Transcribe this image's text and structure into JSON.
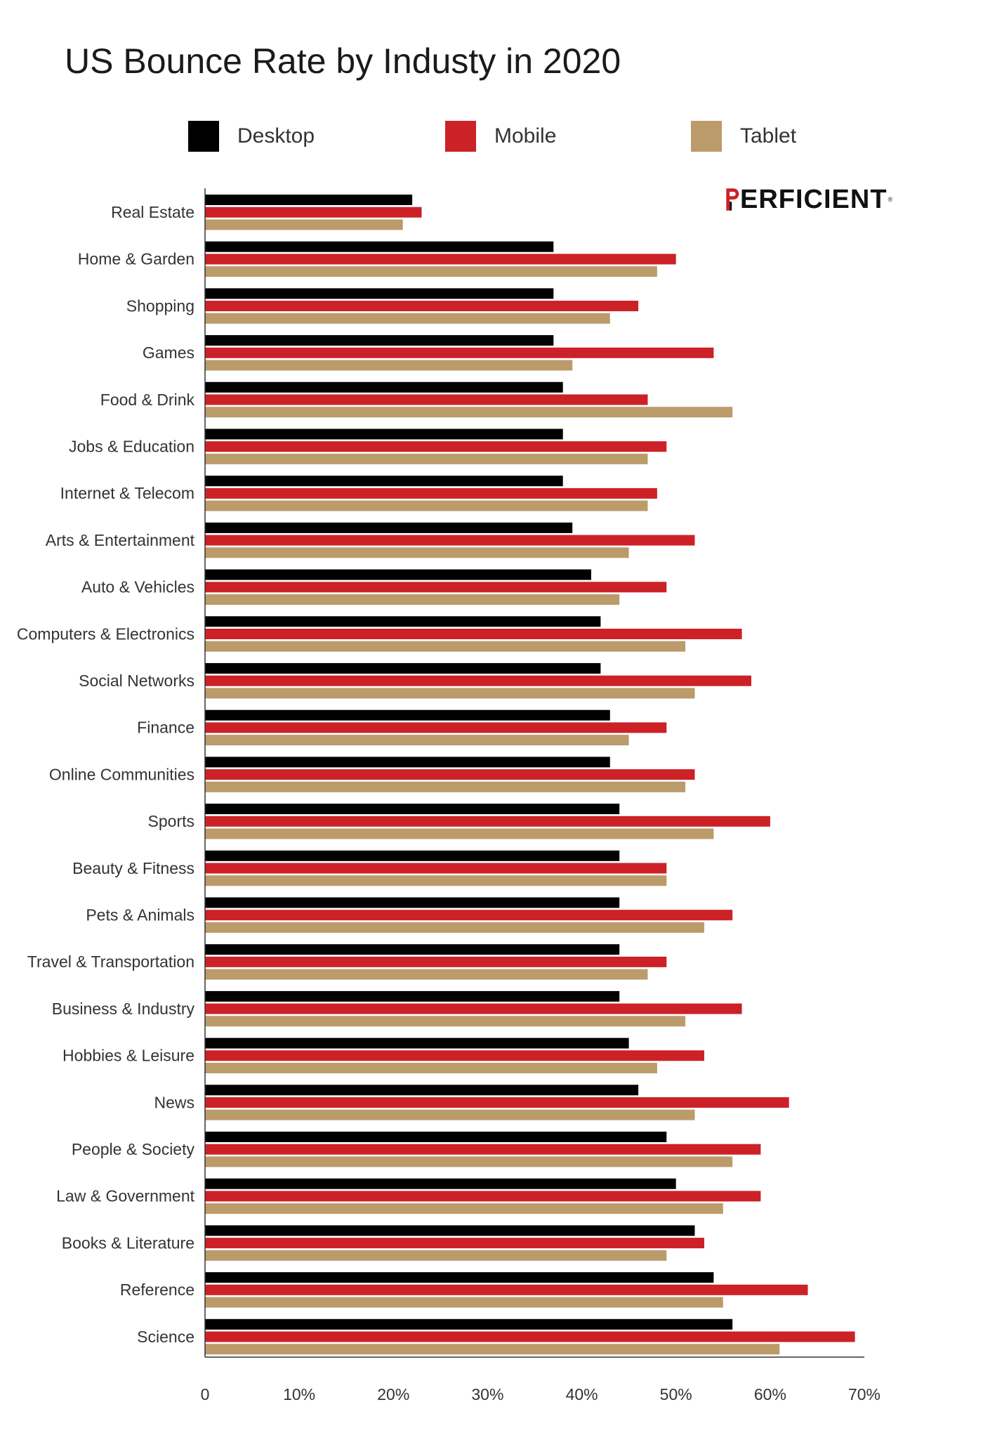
{
  "chart_data": {
    "type": "bar",
    "orientation": "horizontal",
    "title": "US Bounce Rate by Industy in 2020",
    "xlabel": "",
    "ylabel": "",
    "xlim": [
      0,
      70
    ],
    "ticks": [
      0,
      10,
      20,
      30,
      40,
      50,
      60,
      70
    ],
    "tick_labels": [
      "0",
      "10%",
      "20%",
      "30%",
      "40%",
      "50%",
      "60%",
      "70%"
    ],
    "grid": false,
    "legend_position": "top",
    "categories": [
      "Real Estate",
      "Home & Garden",
      "Shopping",
      "Games",
      "Food & Drink",
      "Jobs & Education",
      "Internet & Telecom",
      "Arts & Entertainment",
      "Auto & Vehicles",
      "Computers & Electronics",
      "Social Networks",
      "Finance",
      "Online Communities",
      "Sports",
      "Beauty & Fitness",
      "Pets & Animals",
      "Travel & Transportation",
      "Business & Industry",
      "Hobbies & Leisure",
      "News",
      "People & Society",
      "Law & Government",
      "Books & Literature",
      "Reference",
      "Science"
    ],
    "series": [
      {
        "name": "Desktop",
        "color": "#000000",
        "values": [
          22,
          37,
          37,
          37,
          38,
          38,
          38,
          39,
          41,
          42,
          42,
          43,
          43,
          44,
          44,
          44,
          44,
          44,
          45,
          46,
          49,
          50,
          52,
          54,
          56
        ]
      },
      {
        "name": "Mobile",
        "color": "#cc2127",
        "values": [
          23,
          50,
          46,
          54,
          47,
          49,
          48,
          52,
          49,
          57,
          58,
          49,
          52,
          60,
          49,
          56,
          49,
          57,
          53,
          62,
          59,
          59,
          53,
          64,
          69
        ]
      },
      {
        "name": "Tablet",
        "color": "#bc9b6a",
        "values": [
          21,
          48,
          43,
          39,
          56,
          47,
          47,
          45,
          44,
          51,
          52,
          45,
          51,
          54,
          49,
          53,
          47,
          51,
          48,
          52,
          56,
          55,
          49,
          55,
          61
        ]
      }
    ]
  },
  "logo": {
    "text": "ERFICIENT",
    "mark": "P",
    "tm": "®",
    "mark_color": "#cc2127"
  }
}
